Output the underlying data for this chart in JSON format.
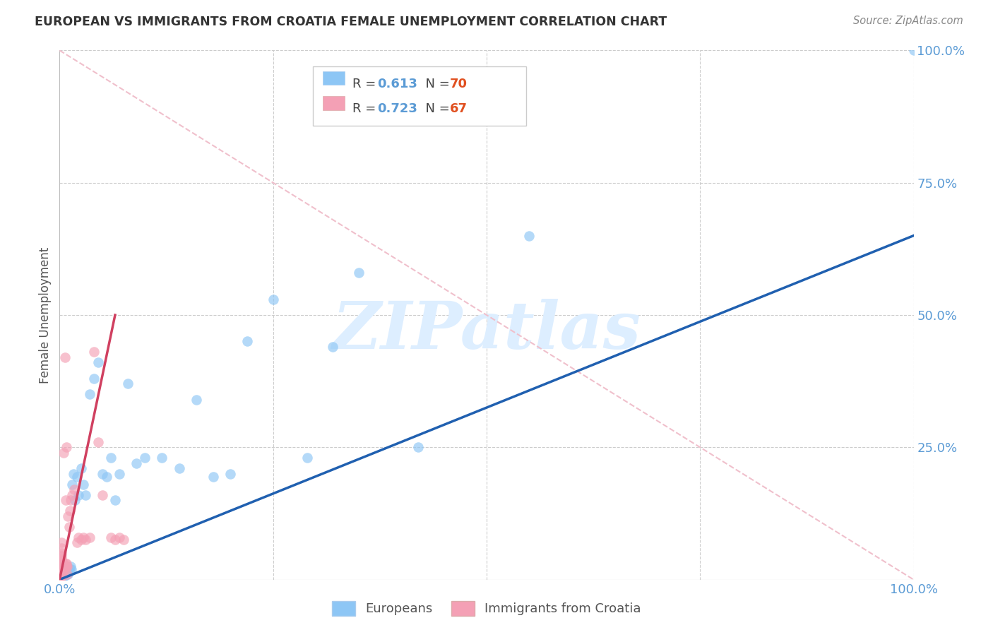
{
  "title": "EUROPEAN VS IMMIGRANTS FROM CROATIA FEMALE UNEMPLOYMENT CORRELATION CHART",
  "source": "Source: ZipAtlas.com",
  "ylabel": "Female Unemployment",
  "xlim": [
    0.0,
    1.0
  ],
  "ylim": [
    0.0,
    1.0
  ],
  "xtick_labels": [
    "0.0%",
    "",
    "",
    "",
    "100.0%"
  ],
  "xtick_positions": [
    0.0,
    0.25,
    0.5,
    0.75,
    1.0
  ],
  "ytick_right_labels": [
    "100.0%",
    "75.0%",
    "50.0%",
    "25.0%"
  ],
  "ytick_right_positions": [
    1.0,
    0.75,
    0.5,
    0.25
  ],
  "legend_european": "Europeans",
  "legend_croatia": "Immigrants from Croatia",
  "r_european": "0.613",
  "n_european": "70",
  "r_croatia": "0.723",
  "n_croatia": "67",
  "european_color": "#8dc6f5",
  "croatia_color": "#f4a0b5",
  "european_line_color": "#2060b0",
  "croatia_line_color": "#d04060",
  "diagonal_color": "#f0c0cc",
  "watermark_color": "#ddeeff",
  "background_color": "#ffffff",
  "grid_color": "#cccccc",
  "axis_tick_color": "#5b9bd5",
  "title_color": "#333333",
  "source_color": "#888888",
  "eu_scatter_x": [
    0.001,
    0.001,
    0.001,
    0.002,
    0.002,
    0.002,
    0.002,
    0.002,
    0.002,
    0.002,
    0.003,
    0.003,
    0.003,
    0.003,
    0.003,
    0.004,
    0.004,
    0.004,
    0.004,
    0.004,
    0.005,
    0.005,
    0.005,
    0.005,
    0.006,
    0.006,
    0.006,
    0.007,
    0.007,
    0.008,
    0.008,
    0.009,
    0.01,
    0.01,
    0.011,
    0.012,
    0.013,
    0.014,
    0.015,
    0.016,
    0.018,
    0.02,
    0.022,
    0.025,
    0.028,
    0.03,
    0.035,
    0.04,
    0.045,
    0.05,
    0.055,
    0.06,
    0.065,
    0.07,
    0.08,
    0.09,
    0.1,
    0.12,
    0.14,
    0.16,
    0.18,
    0.2,
    0.22,
    0.25,
    0.29,
    0.32,
    0.35,
    0.42,
    0.55,
    1.0
  ],
  "eu_scatter_y": [
    0.005,
    0.008,
    0.01,
    0.005,
    0.008,
    0.01,
    0.012,
    0.015,
    0.01,
    0.012,
    0.005,
    0.008,
    0.01,
    0.012,
    0.015,
    0.005,
    0.008,
    0.01,
    0.012,
    0.015,
    0.008,
    0.01,
    0.012,
    0.015,
    0.008,
    0.01,
    0.012,
    0.01,
    0.012,
    0.01,
    0.015,
    0.012,
    0.01,
    0.02,
    0.015,
    0.02,
    0.025,
    0.02,
    0.18,
    0.2,
    0.15,
    0.195,
    0.16,
    0.21,
    0.18,
    0.16,
    0.35,
    0.38,
    0.41,
    0.2,
    0.195,
    0.23,
    0.15,
    0.2,
    0.37,
    0.22,
    0.23,
    0.23,
    0.21,
    0.34,
    0.195,
    0.2,
    0.45,
    0.53,
    0.23,
    0.44,
    0.58,
    0.25,
    0.65,
    1.0
  ],
  "cr_scatter_x": [
    0.001,
    0.001,
    0.001,
    0.001,
    0.001,
    0.001,
    0.001,
    0.001,
    0.001,
    0.002,
    0.002,
    0.002,
    0.002,
    0.002,
    0.002,
    0.002,
    0.002,
    0.002,
    0.002,
    0.002,
    0.002,
    0.002,
    0.002,
    0.002,
    0.003,
    0.003,
    0.003,
    0.003,
    0.003,
    0.004,
    0.004,
    0.004,
    0.004,
    0.005,
    0.005,
    0.005,
    0.006,
    0.006,
    0.007,
    0.007,
    0.008,
    0.008,
    0.009,
    0.01,
    0.011,
    0.012,
    0.013,
    0.015,
    0.017,
    0.02,
    0.022,
    0.025,
    0.028,
    0.03,
    0.035,
    0.04,
    0.045,
    0.05,
    0.06,
    0.065,
    0.07,
    0.075,
    0.005,
    0.006,
    0.007,
    0.008,
    0.009
  ],
  "cr_scatter_y": [
    0.005,
    0.008,
    0.01,
    0.012,
    0.015,
    0.018,
    0.02,
    0.025,
    0.03,
    0.005,
    0.008,
    0.01,
    0.012,
    0.015,
    0.018,
    0.02,
    0.025,
    0.03,
    0.035,
    0.04,
    0.045,
    0.05,
    0.06,
    0.07,
    0.01,
    0.015,
    0.02,
    0.025,
    0.03,
    0.015,
    0.02,
    0.025,
    0.03,
    0.02,
    0.025,
    0.03,
    0.02,
    0.025,
    0.025,
    0.03,
    0.025,
    0.03,
    0.025,
    0.12,
    0.1,
    0.13,
    0.15,
    0.16,
    0.17,
    0.07,
    0.08,
    0.075,
    0.08,
    0.075,
    0.08,
    0.43,
    0.26,
    0.16,
    0.08,
    0.075,
    0.08,
    0.075,
    0.24,
    0.42,
    0.15,
    0.25,
    0.01
  ],
  "eu_line_x0": 0.0,
  "eu_line_y0": 0.0,
  "eu_line_x1": 1.0,
  "eu_line_y1": 0.65,
  "cr_line_x0": 0.0,
  "cr_line_y0": 0.0,
  "cr_line_x1": 0.065,
  "cr_line_y1": 0.5
}
